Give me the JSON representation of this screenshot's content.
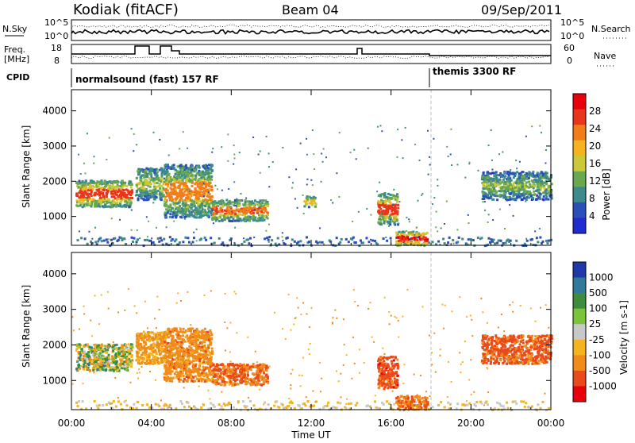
{
  "header": {
    "station": "Kodiak (fitACF)",
    "beam": "Beam 04",
    "date": "09/Sep/2011"
  },
  "top_panels": {
    "nsky_label": "N.Sky",
    "nsky_ticks": [
      "10^5",
      "10^0"
    ],
    "nsearch_label": "N.Search",
    "freq_label_line1": "Freq.",
    "freq_label_line2": "[MHz]",
    "freq_ticks": [
      "18",
      "8"
    ],
    "nave_label": "Nave",
    "nave_ticks": [
      "60",
      "0"
    ],
    "cpid_label": "CPID",
    "cpid_mode_1": "normalsound (fast) 157 RF",
    "cpid_mode_2": "themis 3300 RF"
  },
  "chart_data": [
    {
      "type": "heatmap",
      "title": "",
      "ylabel": "Slant Range [km]",
      "xlabel": "",
      "ylim": [
        180,
        4600
      ],
      "xlim": [
        0,
        24
      ],
      "y_ticks": [
        "1000",
        "2000",
        "3000",
        "4000"
      ],
      "colorbar_label": "Power [dB]",
      "colorbar_ticks": [
        "4",
        "8",
        "12",
        "16",
        "20",
        "24",
        "28"
      ],
      "colorbar_colors": [
        "#1f2ccf",
        "#2b4fb8",
        "#3d8a8a",
        "#6aa84f",
        "#c9c93a",
        "#f5b31f",
        "#f07d1a",
        "#e8361a",
        "#e8000a"
      ],
      "regions": [
        {
          "t0": 0.2,
          "t1": 3.0,
          "r0": 1300,
          "r1": 2050,
          "v": 22,
          "core": 28
        },
        {
          "t0": 3.2,
          "t1": 4.6,
          "r0": 1500,
          "r1": 2400,
          "v": 16
        },
        {
          "t0": 4.6,
          "t1": 7.0,
          "r0": 1000,
          "r1": 2500,
          "v": 18,
          "core": 24
        },
        {
          "t0": 7.0,
          "t1": 9.8,
          "r0": 900,
          "r1": 1500,
          "v": 20,
          "core": 26
        },
        {
          "t0": 11.6,
          "t1": 12.2,
          "r0": 1300,
          "r1": 1600,
          "v": 22
        },
        {
          "t0": 15.3,
          "t1": 16.3,
          "r0": 800,
          "r1": 1700,
          "v": 22,
          "core": 28
        },
        {
          "t0": 16.2,
          "t1": 17.8,
          "r0": 200,
          "r1": 600,
          "v": 28,
          "core": 30
        },
        {
          "t0": 20.5,
          "t1": 24.0,
          "r0": 1500,
          "r1": 2300,
          "v": 14
        }
      ]
    },
    {
      "type": "heatmap",
      "title": "",
      "ylabel": "Slant Range [km]",
      "xlabel": "Time UT",
      "ylim": [
        180,
        4600
      ],
      "xlim": [
        0,
        24
      ],
      "x_ticks": [
        "00:00",
        "04:00",
        "08:00",
        "12:00",
        "16:00",
        "20:00",
        "00:00"
      ],
      "y_ticks": [
        "1000",
        "2000",
        "3000",
        "4000"
      ],
      "colorbar_label": "Velocity [m s-1]",
      "colorbar_ticks": [
        "1000",
        "500",
        "100",
        "25",
        "-25",
        "-100",
        "-500",
        "-1000"
      ],
      "colorbar_colors": [
        "#1f3aa8",
        "#2f7a9a",
        "#3e8c3e",
        "#7bc43a",
        "#c8c8c8",
        "#f5b31f",
        "#f08c1a",
        "#e84a1a",
        "#e8000a"
      ],
      "regions": [
        {
          "t0": 0.2,
          "t1": 3.0,
          "r0": 1300,
          "r1": 2050,
          "v": 0
        },
        {
          "t0": 3.2,
          "t1": 4.6,
          "r0": 1500,
          "r1": 2400,
          "v": -150
        },
        {
          "t0": 4.6,
          "t1": 7.0,
          "r0": 1000,
          "r1": 2500,
          "v": -200
        },
        {
          "t0": 7.0,
          "t1": 9.8,
          "r0": 900,
          "r1": 1500,
          "v": -300
        },
        {
          "t0": 15.3,
          "t1": 16.3,
          "r0": 800,
          "r1": 1700,
          "v": -400
        },
        {
          "t0": 16.2,
          "t1": 17.8,
          "r0": 200,
          "r1": 600,
          "v": -300
        },
        {
          "t0": 20.5,
          "t1": 24.0,
          "r0": 1500,
          "r1": 2300,
          "v": -350
        }
      ]
    }
  ]
}
